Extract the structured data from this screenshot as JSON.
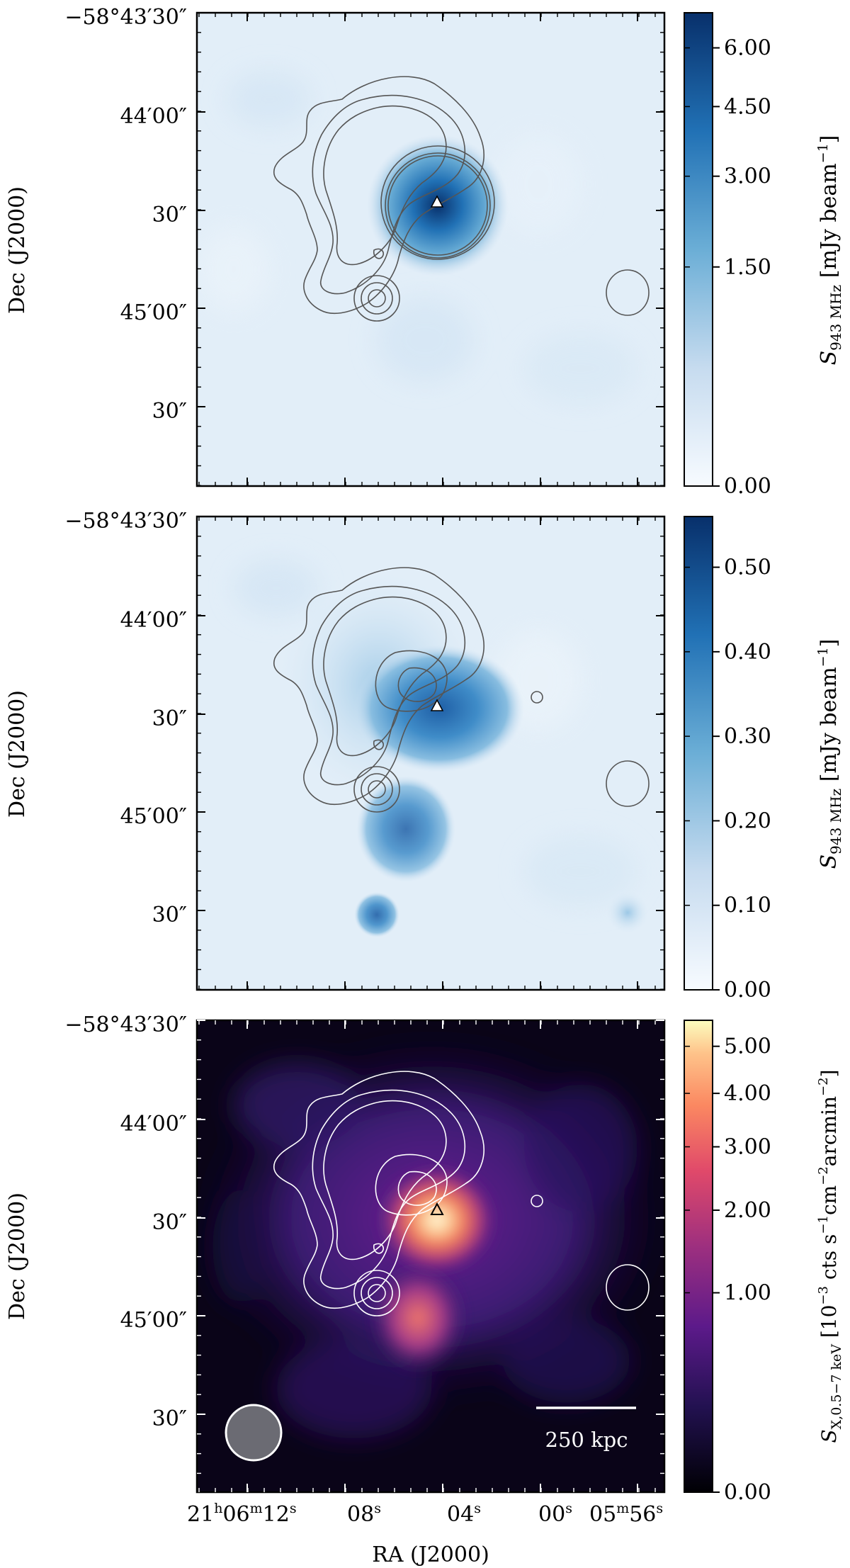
{
  "chart_data": [
    {
      "type": "heatmap",
      "panel": "top",
      "ylabel": "Dec (J2000)",
      "y_tick_labels": [
        "−58°43′30″",
        "44′00″",
        "30″",
        "45′00″",
        "30″"
      ],
      "colorbar": {
        "label_main": "S",
        "label_sub": "943 MHz",
        "label_unit": " [mJy beam",
        "label_exp": "−1",
        "label_close": "]",
        "colormap": "blues",
        "tick_labels": [
          "6.00",
          "4.50",
          "3.00",
          "1.50",
          "0.00"
        ],
        "ticks": [
          6.0,
          4.5,
          3.0,
          1.5,
          0.0
        ],
        "range": [
          0.0,
          7.0
        ],
        "scale": "sqrt"
      },
      "peak_value": 6.0,
      "marker": "triangle",
      "contour_color": "#4d4d4d"
    },
    {
      "type": "heatmap",
      "panel": "middle",
      "ylabel": "Dec (J2000)",
      "y_tick_labels": [
        "−58°43′30″",
        "44′00″",
        "30″",
        "45′00″",
        "30″"
      ],
      "colorbar": {
        "label_main": "S",
        "label_sub": "943 MHz",
        "label_unit": " [mJy beam",
        "label_exp": "−1",
        "label_close": "]",
        "colormap": "blues",
        "tick_labels": [
          "0.50",
          "0.40",
          "0.30",
          "0.20",
          "0.10",
          "0.00"
        ],
        "ticks": [
          0.5,
          0.4,
          0.3,
          0.2,
          0.1,
          0.0
        ],
        "range": [
          0.0,
          0.56
        ],
        "scale": "linear"
      },
      "peak_value": 0.5,
      "marker": "triangle",
      "contour_color": "#4d4d4d"
    },
    {
      "type": "heatmap",
      "panel": "bottom",
      "ylabel": "Dec (J2000)",
      "xlabel": "RA (J2000)",
      "y_tick_labels": [
        "−58°43′30″",
        "44′00″",
        "30″",
        "45′00″",
        "30″"
      ],
      "x_tick_labels": [
        {
          "main": "21",
          "sup1": "h",
          "mid": "06",
          "sup2": "m",
          "end": "12",
          "sup3": "s"
        },
        {
          "main": "08",
          "sup3": "s"
        },
        {
          "main": "04",
          "sup3": "s"
        },
        {
          "main": "00",
          "sup3": "s"
        },
        {
          "main": "05",
          "sup2": "m",
          "end": "56",
          "sup3": "s"
        }
      ],
      "colorbar": {
        "label_main": "S",
        "label_sub": "X,0.5−7 keV",
        "label_unit": " [10",
        "label_exp": "−3",
        "label_rest": " cts s",
        "label_exp2": "−1",
        "label_rest2": "cm",
        "label_exp3": "−2",
        "label_rest3": "arcmin",
        "label_exp4": "−2",
        "label_close": "]",
        "colormap": "magma",
        "tick_labels": [
          "5.00",
          "4.00",
          "3.00",
          "2.00",
          "1.00",
          "0.00"
        ],
        "ticks": [
          5.0,
          4.0,
          3.0,
          2.0,
          1.0,
          0.0
        ],
        "range": [
          0.0,
          5.6
        ],
        "scale": "sqrt"
      },
      "scalebar_label": "250 kpc",
      "beam": "circular",
      "marker": "triangle",
      "contour_color": "#ffffff"
    }
  ]
}
